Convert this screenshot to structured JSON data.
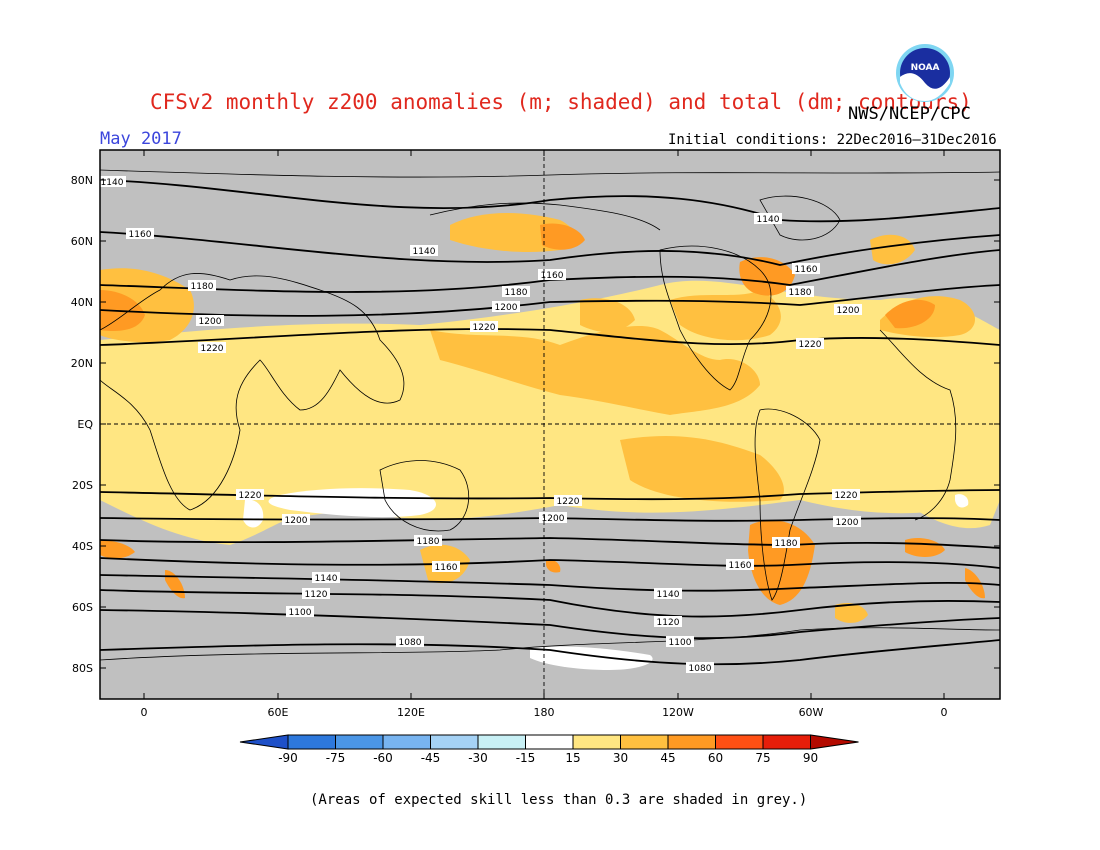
{
  "title": "CFSv2 monthly z200 anomalies (m; shaded) and total (dm; contours)",
  "org": "NWS/NCEP/CPC",
  "logo_text": "NOAA",
  "month": "May 2017",
  "initial_conditions": "Initial conditions: 22Dec2016–31Dec2016",
  "footnote": "(Areas of expected skill less than 0.3 are shaded in grey.)",
  "lat_labels": [
    "80N",
    "60N",
    "40N",
    "20N",
    "EQ",
    "20S",
    "40S",
    "60S",
    "80S"
  ],
  "lon_labels": [
    "0",
    "60E",
    "120E",
    "180",
    "120W",
    "60W",
    "0"
  ],
  "colorbar": {
    "levels": [
      "-90",
      "-75",
      "-60",
      "-45",
      "-30",
      "-15",
      "15",
      "30",
      "45",
      "60",
      "75",
      "90"
    ],
    "colors": [
      "#1e50c8",
      "#2d78dc",
      "#4b96e6",
      "#78b4f0",
      "#a5d2f5",
      "#c8f0f5",
      "#ffffff",
      "#ffe682",
      "#ffc040",
      "#ff9a23",
      "#ff5014",
      "#e61e0a",
      "#b40a00"
    ]
  },
  "shading_colors": {
    "grey": "#c0c0c0",
    "15-30": "#ffe682",
    "30-45": "#ffc040",
    "45-60": "#ff9a23",
    "60-75": "#ff5014",
    "near-zero": "#ffffff"
  },
  "contours": [
    {
      "label": "1140",
      "positions": [
        "1140",
        "1140",
        "1140"
      ]
    },
    {
      "label": "1160",
      "positions": [
        "1160",
        "1160",
        "1160"
      ]
    },
    {
      "label": "1180",
      "positions": [
        "1180",
        "1180",
        "1180"
      ]
    },
    {
      "label": "1200",
      "positions": [
        "1200",
        "1200",
        "1200"
      ]
    },
    {
      "label": "1220",
      "positions": [
        "1220",
        "1220",
        "1220"
      ]
    },
    {
      "label": "1220",
      "positions": [
        "1220",
        "1220",
        "1220"
      ]
    },
    {
      "label": "1200",
      "positions": [
        "1200",
        "1200",
        "1200"
      ]
    },
    {
      "label": "1180",
      "positions": [
        "1180",
        "1180",
        "1180"
      ]
    },
    {
      "label": "1160",
      "positions": [
        "1160",
        "1160"
      ]
    },
    {
      "label": "1140",
      "positions": [
        "1140",
        "1140"
      ]
    },
    {
      "label": "1120",
      "positions": [
        "1120",
        "1120"
      ]
    },
    {
      "label": "1100",
      "positions": [
        "1100",
        "1100"
      ]
    },
    {
      "label": "1080",
      "positions": [
        "1080",
        "1080"
      ]
    }
  ]
}
